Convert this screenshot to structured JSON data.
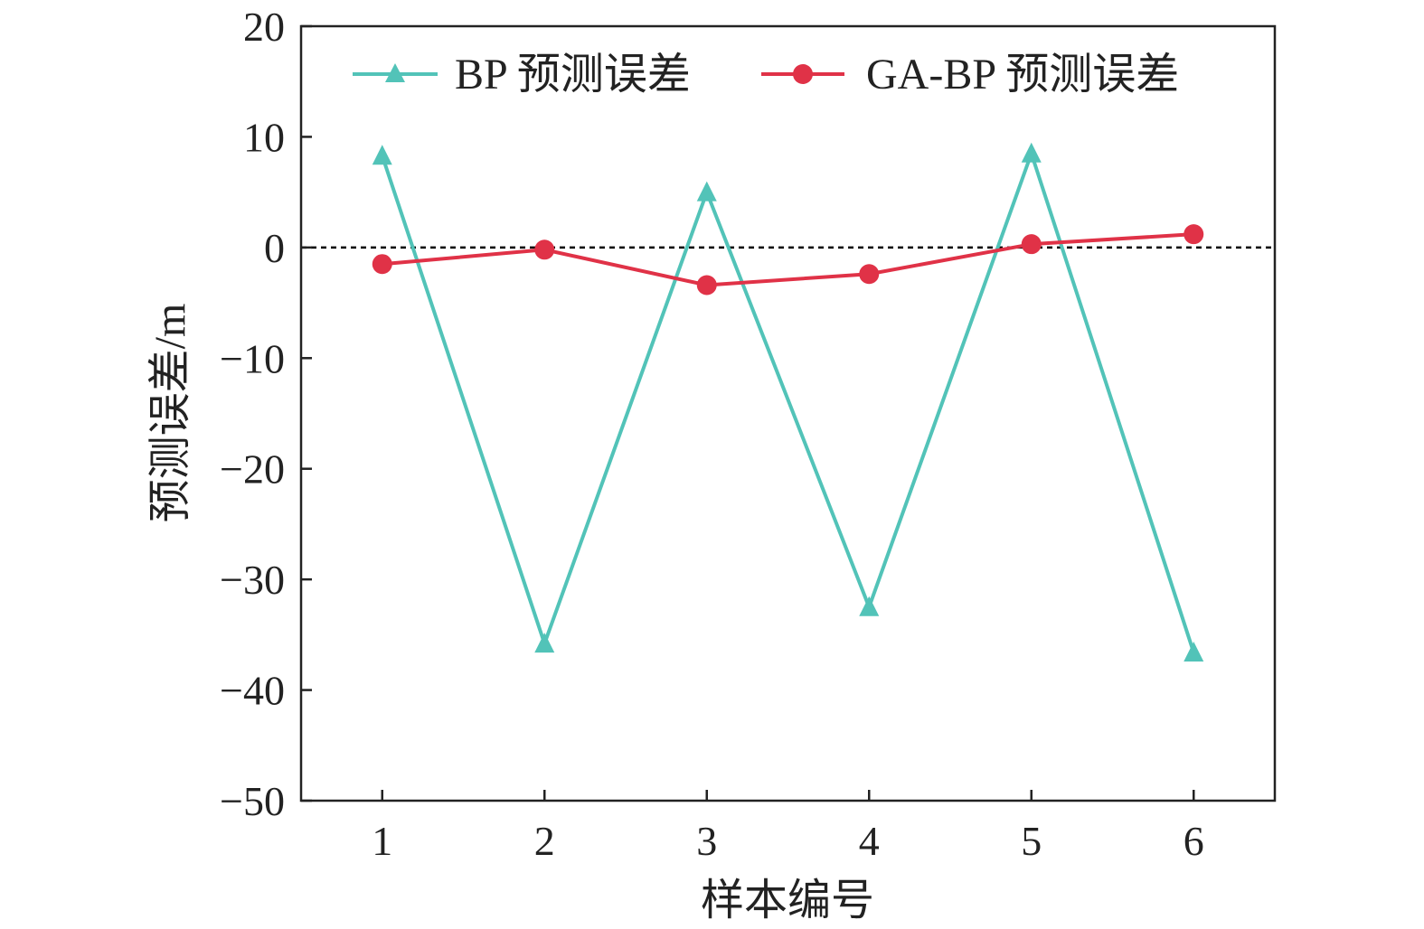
{
  "chart_data": {
    "type": "line",
    "title": "",
    "xlabel": "样本编号",
    "ylabel": "预测误差/m",
    "x": [
      1,
      2,
      3,
      4,
      5,
      6
    ],
    "xlim": [
      0.5,
      6.5
    ],
    "ylim": [
      -50,
      20
    ],
    "xticks": [
      "1",
      "2",
      "3",
      "4",
      "5",
      "6"
    ],
    "yticks": [
      "20",
      "10",
      "0",
      "−10",
      "−20",
      "−30",
      "−40",
      "−50"
    ],
    "ytick_values": [
      20,
      10,
      0,
      -10,
      -20,
      -30,
      -40,
      -50
    ],
    "grid": false,
    "reference_line": {
      "y": 0,
      "style": "dotted",
      "color": "#000000"
    },
    "legend_position": "top",
    "series": [
      {
        "name": "BP 预测误差",
        "marker": "triangle",
        "color": "#52c3b8",
        "values": [
          8.3,
          -35.8,
          5.0,
          -32.5,
          8.5,
          -36.6
        ]
      },
      {
        "name": "GA-BP 预测误差",
        "marker": "circle",
        "color": "#e03247",
        "values": [
          -1.5,
          -0.2,
          -3.4,
          -2.4,
          0.3,
          1.2
        ]
      }
    ]
  }
}
